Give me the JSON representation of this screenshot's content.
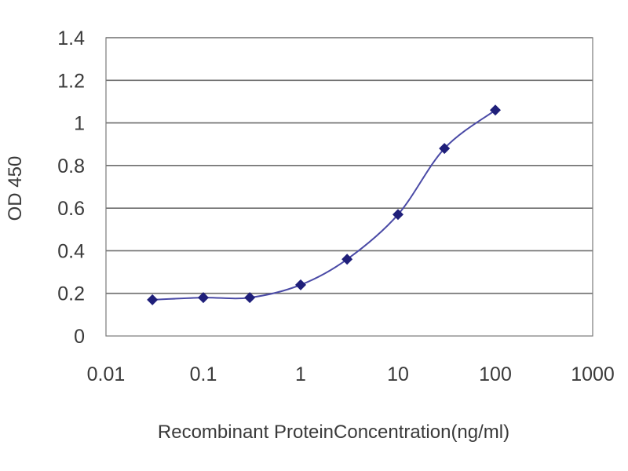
{
  "chart_data": {
    "type": "scatter",
    "xscale": "log",
    "xlim": [
      0.01,
      1000
    ],
    "ylim": [
      0,
      1.4
    ],
    "xticks": [
      "0.01",
      "0.1",
      "1",
      "10",
      "100",
      "1000"
    ],
    "yticks": [
      "0",
      "0.2",
      "0.4",
      "0.6",
      "0.8",
      "1",
      "1.2",
      "1.4"
    ],
    "xlabel": "Recombinant ProteinConcentration(ng/ml)",
    "ylabel": "OD 450",
    "grid": "horizontal",
    "legend": "none",
    "series": [
      {
        "marker": "diamond",
        "line": "smooth",
        "color": "#1f1f7a",
        "points": [
          {
            "x": 0.03,
            "y": 0.17
          },
          {
            "x": 0.1,
            "y": 0.18
          },
          {
            "x": 0.3,
            "y": 0.18
          },
          {
            "x": 1,
            "y": 0.24
          },
          {
            "x": 3,
            "y": 0.36
          },
          {
            "x": 10,
            "y": 0.57
          },
          {
            "x": 30,
            "y": 0.88
          },
          {
            "x": 100,
            "y": 1.06
          }
        ]
      }
    ]
  }
}
